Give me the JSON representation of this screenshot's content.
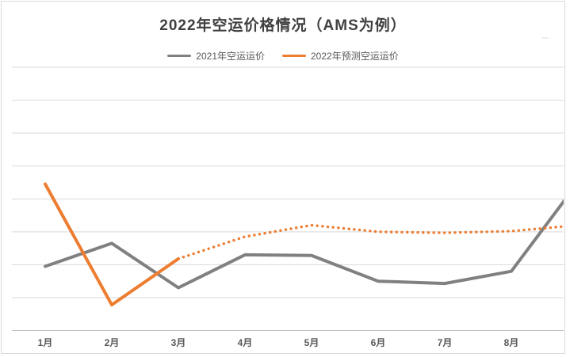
{
  "chart_data": {
    "type": "line",
    "title": "2022年空运价格情况（AMS为例）",
    "legend_position": "top",
    "categories": [
      "1月",
      "2月",
      "3月",
      "4月",
      "5月",
      "6月",
      "7月",
      "8月"
    ],
    "series": [
      {
        "name": "2021年空运运价",
        "color": "#808080",
        "line_style": "solid",
        "values": [
          1.95,
          2.65,
          1.3,
          2.3,
          2.28,
          1.5,
          1.43,
          1.8
        ],
        "offscreen_next_value": 4.5
      },
      {
        "name": "2022年预测空运运价",
        "color": "#ED7D31",
        "line_style": "solid until 3月, dotted afterwards",
        "dotted_from_index": 2,
        "values": [
          4.45,
          0.78,
          2.18,
          2.85,
          3.2,
          3.0,
          2.97,
          3.02
        ],
        "offscreen_next_value": 3.2
      }
    ],
    "ylim": [
      0,
      8
    ],
    "y_gridline_step": 1,
    "y_tick_labels_visible": false,
    "grid": "horizontal gridlines only, chart clipped at right edge before 9月",
    "note": "value axis has no labels; values expressed in gridline units from the bottom axis"
  },
  "colors": {
    "gridline": "#d9d9d9",
    "axis_line": "#bfbfbf",
    "title_text": "#404040",
    "label_text": "#595959",
    "border": "#d9d9d9",
    "background": "#ffffff"
  }
}
